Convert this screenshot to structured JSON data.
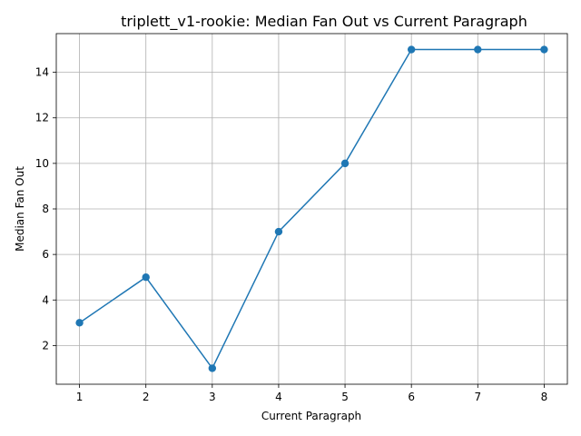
{
  "chart_data": {
    "type": "line",
    "title": "triplett_v1-rookie: Median Fan Out vs Current Paragraph",
    "xlabel": "Current Paragraph",
    "ylabel": "Median Fan Out",
    "x": [
      1,
      2,
      3,
      4,
      5,
      6,
      7,
      8
    ],
    "series": [
      {
        "values": [
          3,
          5,
          1,
          7,
          10,
          15,
          15,
          15
        ],
        "color": "#1f77b4",
        "marker": "circle"
      }
    ],
    "xticks": [
      1,
      2,
      3,
      4,
      5,
      6,
      7,
      8
    ],
    "yticks": [
      2,
      4,
      6,
      8,
      10,
      12,
      14
    ],
    "xlim": [
      0.65,
      8.35
    ],
    "ylim": [
      0.3,
      15.7
    ],
    "grid": true
  }
}
